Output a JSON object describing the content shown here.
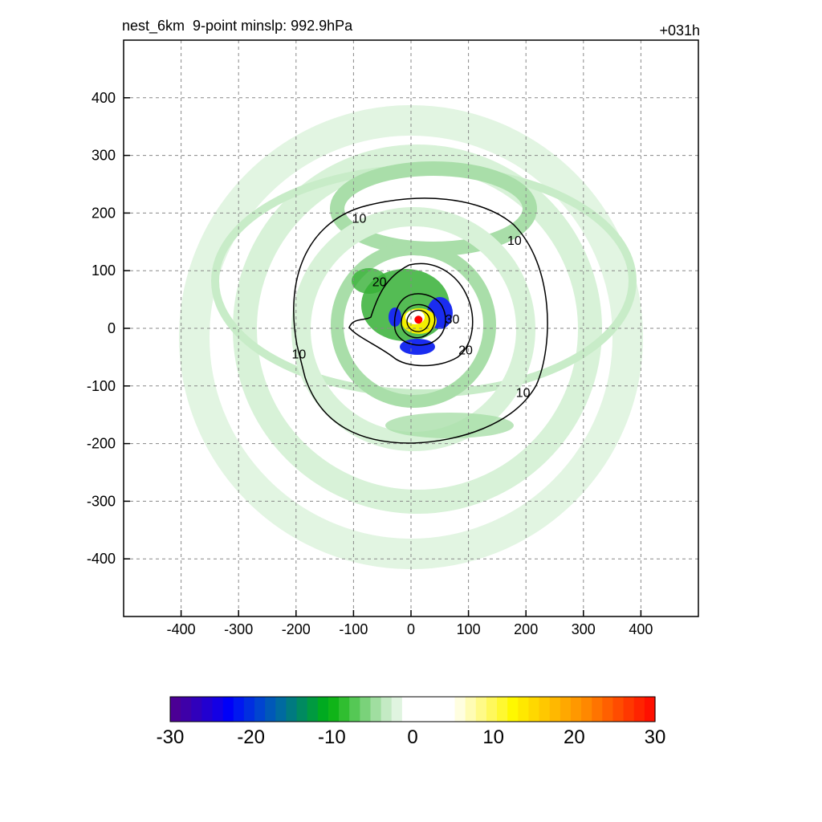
{
  "header": {
    "title_left": "nest_6km  9-point minslp: 992.9hPa",
    "title_right": "+031h"
  },
  "chart_data": {
    "type": "contour",
    "x_ticks": [
      -400,
      -300,
      -200,
      -100,
      0,
      100,
      200,
      300,
      400
    ],
    "y_ticks": [
      400,
      300,
      200,
      100,
      0,
      -100,
      -200,
      -300,
      -400
    ],
    "xlim": [
      -500,
      500
    ],
    "ylim": [
      -500,
      500
    ],
    "grid": true,
    "contour_labels": [
      {
        "text": "10",
        "x": -90,
        "y": 190
      },
      {
        "text": "10",
        "x": 180,
        "y": 152
      },
      {
        "text": "10",
        "x": -195,
        "y": -45
      },
      {
        "text": "10",
        "x": 195,
        "y": -112
      },
      {
        "text": "20",
        "x": -55,
        "y": 80
      },
      {
        "text": "30",
        "x": 72,
        "y": 15
      },
      {
        "text": "20",
        "x": 95,
        "y": -38
      }
    ],
    "center_marker": {
      "x": 13,
      "y": 15,
      "color": "#ff0000"
    },
    "colorbar": {
      "min": -30,
      "max": 30,
      "tick_labels": [
        "-30",
        "-20",
        "-10",
        "0",
        "10",
        "20",
        "30"
      ]
    }
  },
  "colors": {
    "colorbar": [
      "#4b0095",
      "#3e00a8",
      "#3000bc",
      "#2200d0",
      "#1400e4",
      "#0000f8",
      "#0018f0",
      "#002ee0",
      "#0044d0",
      "#0058b8",
      "#006aa0",
      "#007a80",
      "#008a60",
      "#009a40",
      "#00aa20",
      "#10b418",
      "#30be30",
      "#55c855",
      "#7ad27a",
      "#a0dea0",
      "#c4eac4",
      "#e0f4e0",
      "#ffffff",
      "#ffffff",
      "#ffffff",
      "#ffffff",
      "#ffffff",
      "#fffee0",
      "#fffcb4",
      "#fffa88",
      "#fff85c",
      "#fff830",
      "#fff800",
      "#ffe800",
      "#ffd800",
      "#ffc800",
      "#ffb800",
      "#ffa800",
      "#ff9800",
      "#ff8800",
      "#ff7400",
      "#ff6000",
      "#ff4c00",
      "#ff3800",
      "#ff2400",
      "#ff1000"
    ],
    "green_light": "#d8f2d8",
    "green_mid": "#a9dea9",
    "green_dark": "#36b036",
    "blue": "#1a2cf0",
    "yellow": "#f4f000"
  }
}
